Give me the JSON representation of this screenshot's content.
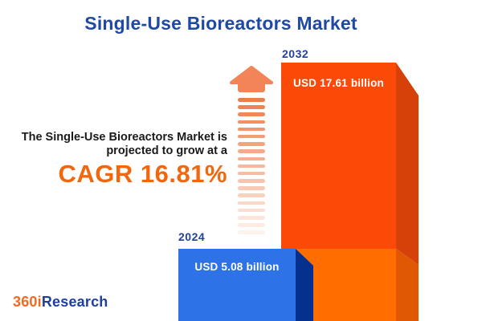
{
  "title": "Single-Use Bioreactors Market",
  "intro": {
    "line1": "The Single-Use Bioreactors Market is",
    "line2": "projected to grow at a",
    "cagr": "CAGR 16.81%"
  },
  "chart_data": {
    "type": "bar",
    "title": "Single-Use Bioreactors Market",
    "categories": [
      "2024",
      "2032"
    ],
    "values": [
      5.08,
      17.61
    ],
    "value_labels": [
      "USD 5.08 billion",
      "USD 17.61 billion"
    ],
    "unit": "USD billion",
    "cagr_percent": 16.81,
    "legend": "none",
    "grid": "off"
  },
  "arrow": {
    "stripe_count": 19,
    "stripe_opacity_step": 0.05
  },
  "logo": {
    "part1": "360i",
    "part2": "Research"
  },
  "colors": {
    "title_blue": "#1E49A5",
    "year_label_blue": "#21419F",
    "cagr_orange": "#F2670D",
    "intro_text": "#1a1a1a",
    "bar2032_front_upper": "#FB4A07",
    "bar2032_front_lower": "#FF6C00",
    "bar2032_side_upper": "#D54108",
    "bar2032_side_lower": "#E05804",
    "bar2024_front": "#2E72E8",
    "bar2024_side": "#06308E",
    "arrow_head": "#F28457",
    "arrow_stripe": "#EF7C49",
    "value_text_white": "#ffffff",
    "logo_orange": "#F26A21",
    "logo_blue": "#1E3F9C",
    "background": "#ffffff"
  }
}
